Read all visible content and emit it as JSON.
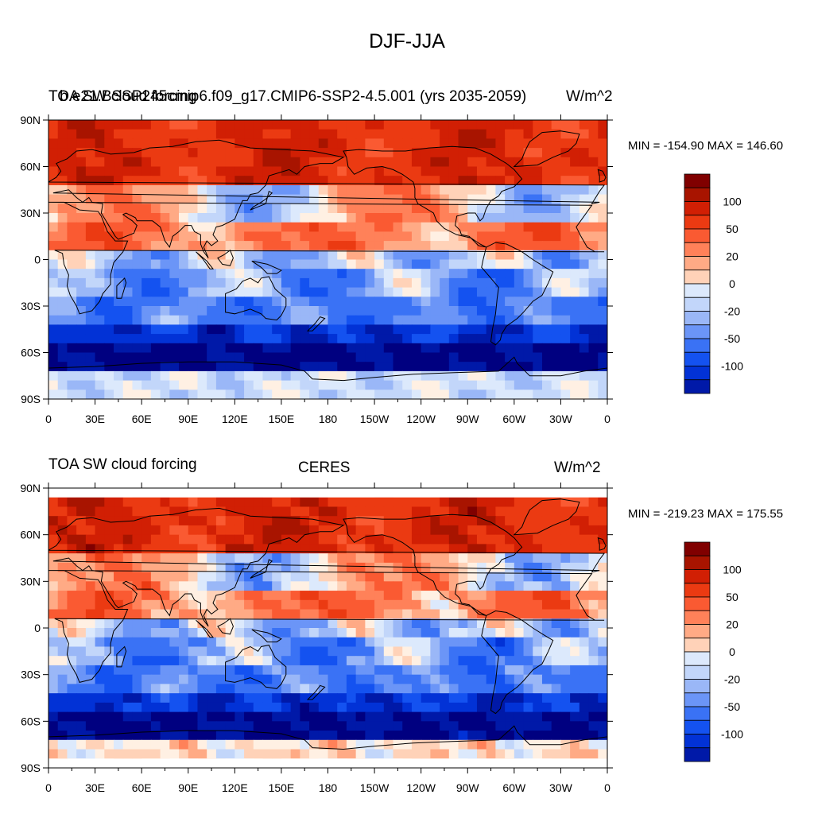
{
  "title": "DJF-JJA",
  "colors": {
    "levels": [
      "#000080",
      "#0019a8",
      "#0232d6",
      "#1452f0",
      "#3a72f5",
      "#6b95f7",
      "#9ab7f7",
      "#c2d6fa",
      "#dce9fc",
      "#fff0e3",
      "#ffd2b8",
      "#ffaa85",
      "#ff8159",
      "#fa5a32",
      "#eb3a12",
      "#d11f04",
      "#a81400",
      "#800000"
    ]
  },
  "chart_data": [
    {
      "type": "heatmap",
      "title": "DJF-JJA",
      "left_title": "TOA SW cloud forcing",
      "center_title": "b.e21.BSSP245cmip6.f09_g17.CMIP6-SSP2-4.5.001 (yrs 2035-2059)",
      "right_title": "W/m^2",
      "stats": "MIN = -154.90 MAX = 146.60",
      "x_ticks": [
        "0",
        "30E",
        "60E",
        "90E",
        "120E",
        "150E",
        "180",
        "150W",
        "120W",
        "90W",
        "60W",
        "30W",
        "0"
      ],
      "y_ticks": [
        "90N",
        "60N",
        "30N",
        "0",
        "30S",
        "60S",
        "90S"
      ],
      "xlim": [
        0,
        360
      ],
      "ylim": [
        -90,
        90
      ],
      "colorbar_labels": [
        "100",
        "50",
        "20",
        "0",
        "-20",
        "-50",
        "-100"
      ]
    },
    {
      "type": "heatmap",
      "title": "",
      "left_title": "TOA SW cloud forcing",
      "center_title": "CERES",
      "right_title": "W/m^2",
      "stats": "MIN = -219.23 MAX = 175.55",
      "x_ticks": [
        "0",
        "30E",
        "60E",
        "90E",
        "120E",
        "150E",
        "180",
        "150W",
        "120W",
        "90W",
        "60W",
        "30W",
        "0"
      ],
      "y_ticks": [
        "90N",
        "60N",
        "30N",
        "0",
        "30S",
        "60S",
        "90S"
      ],
      "xlim": [
        0,
        360
      ],
      "ylim": [
        -90,
        90
      ],
      "colorbar_labels": [
        "100",
        "50",
        "20",
        "0",
        "-20",
        "-50",
        "-100"
      ]
    }
  ]
}
